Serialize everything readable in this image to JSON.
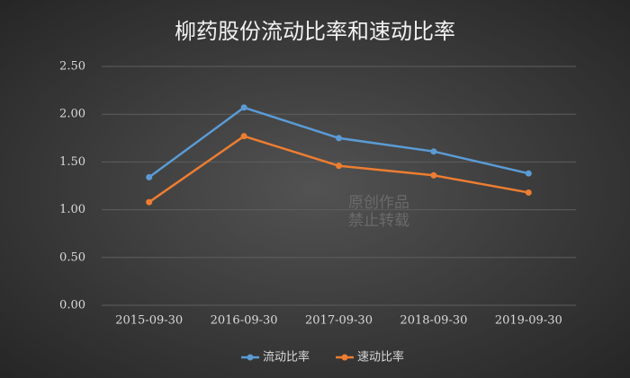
{
  "chart_data": {
    "type": "line",
    "title": "柳药股份流动比率和速动比率",
    "categories": [
      "2015-09-30",
      "2016-09-30",
      "2017-09-30",
      "2018-09-30",
      "2019-09-30"
    ],
    "series": [
      {
        "name": "流动比率",
        "color": "#5b9bd5",
        "values": [
          1.34,
          2.07,
          1.75,
          1.61,
          1.38
        ]
      },
      {
        "name": "速动比率",
        "color": "#ed7d31",
        "values": [
          1.08,
          1.77,
          1.46,
          1.36,
          1.18
        ]
      }
    ],
    "ylim": [
      0,
      2.5
    ],
    "yticks": [
      {
        "value": 0,
        "label": "0.00"
      },
      {
        "value": 0.5,
        "label": "0.50"
      },
      {
        "value": 1,
        "label": "1.00"
      },
      {
        "value": 1.5,
        "label": "1.50"
      },
      {
        "value": 2,
        "label": "2.00"
      },
      {
        "value": 2.5,
        "label": "2.50"
      }
    ],
    "grid": true,
    "legend": "bottom",
    "watermark": [
      "原创作品",
      "禁止转载"
    ]
  }
}
